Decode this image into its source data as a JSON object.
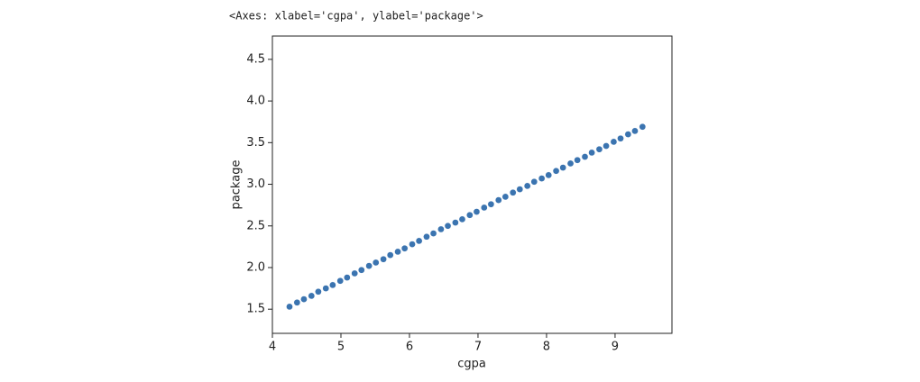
{
  "cell_output": "<Axes: xlabel='cgpa', ylabel='package'>",
  "chart_data": {
    "type": "scatter",
    "xlabel": "cgpa",
    "ylabel": "package",
    "color": "#3b74b0",
    "grid": false,
    "xlim": [
      4.0,
      9.83
    ],
    "ylim": [
      1.21,
      4.78
    ],
    "xticks": [
      4,
      5,
      6,
      7,
      8,
      9
    ],
    "yticks": [
      1.5,
      {
        "value": 2.0,
        "label": "2.0"
      },
      2.5,
      {
        "value": 3.0,
        "label": "3.0"
      },
      3.5,
      {
        "value": 4.0,
        "label": "4.0"
      },
      4.5
    ],
    "x": [
      4.25,
      4.36,
      4.46,
      4.57,
      4.67,
      4.78,
      4.88,
      4.99,
      5.09,
      5.2,
      5.3,
      5.41,
      5.51,
      5.62,
      5.72,
      5.83,
      5.93,
      6.04,
      6.14,
      6.25,
      6.35,
      6.46,
      6.56,
      6.67,
      6.77,
      6.88,
      6.98,
      7.09,
      7.19,
      7.3,
      7.4,
      7.51,
      7.61,
      7.72,
      7.82,
      7.93,
      8.03,
      8.14,
      8.24,
      8.35,
      8.45,
      8.56,
      8.66,
      8.77,
      8.87,
      8.98,
      9.08,
      9.19,
      9.29,
      9.4
    ],
    "values": [
      1.53,
      1.58,
      1.62,
      1.66,
      1.71,
      1.75,
      1.79,
      1.84,
      1.88,
      1.93,
      1.97,
      2.02,
      2.06,
      2.1,
      2.15,
      2.19,
      2.23,
      2.28,
      2.32,
      2.37,
      2.41,
      2.46,
      2.5,
      2.54,
      2.58,
      2.63,
      2.67,
      2.72,
      2.76,
      2.81,
      2.85,
      2.9,
      2.94,
      2.98,
      3.03,
      3.07,
      3.11,
      3.16,
      3.2,
      3.25,
      3.29,
      3.33,
      3.38,
      3.42,
      3.46,
      3.51,
      3.55,
      3.6,
      3.64,
      3.69
    ]
  }
}
